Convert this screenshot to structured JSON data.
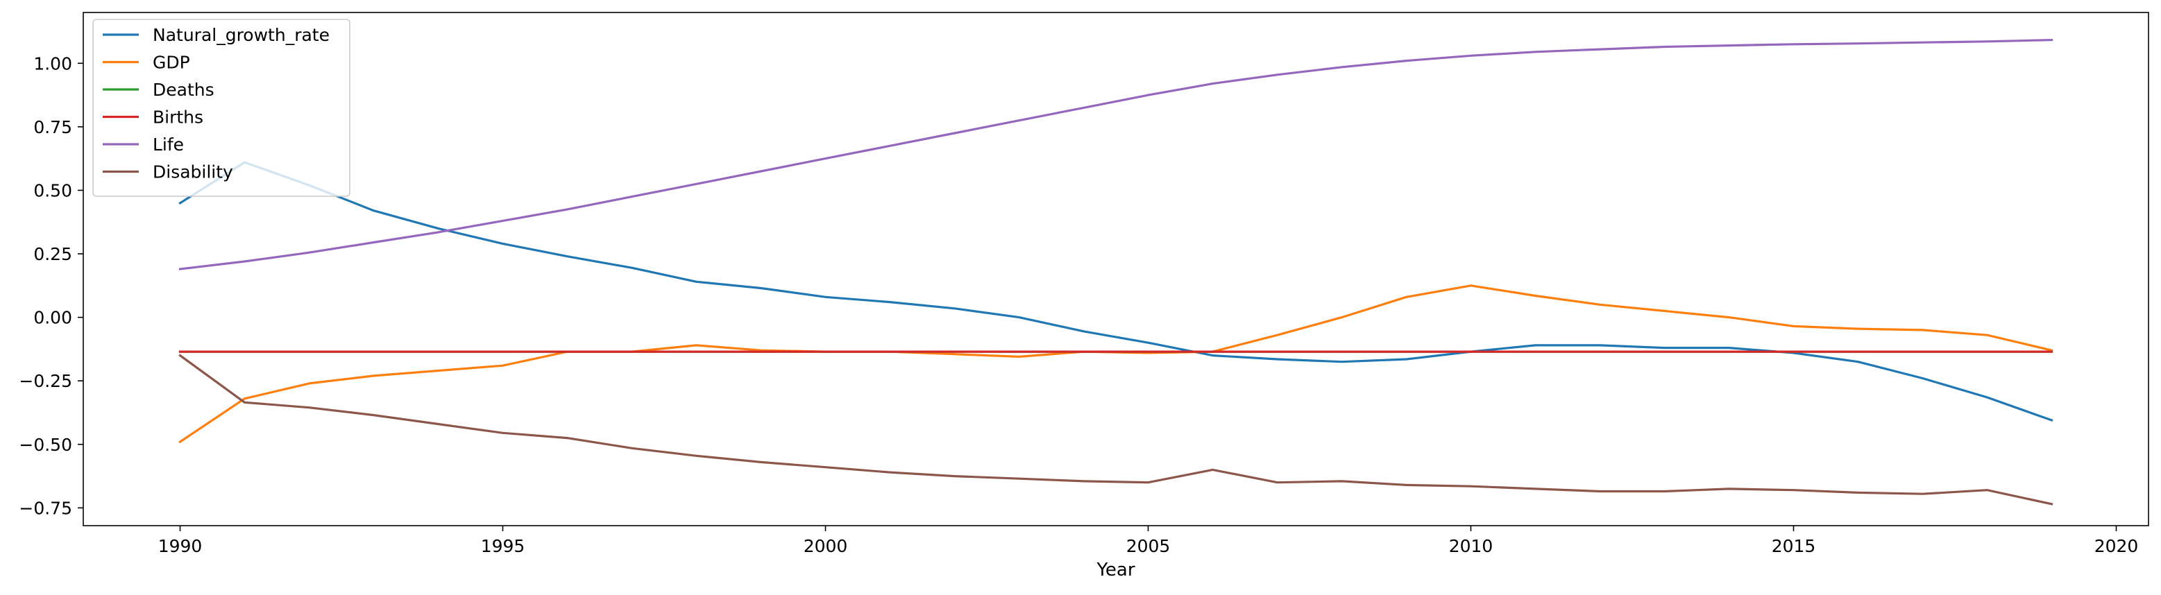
{
  "chart_data": {
    "type": "line",
    "title": "",
    "xlabel": "Year",
    "ylabel": "",
    "xlim": [
      1988.5,
      2020.5
    ],
    "ylim": [
      -0.82,
      1.2
    ],
    "xticks": [
      1990,
      1995,
      2000,
      2005,
      2010,
      2015,
      2020
    ],
    "yticks": [
      -0.75,
      -0.5,
      -0.25,
      0.0,
      0.25,
      0.5,
      0.75,
      1.0
    ],
    "ytick_labels": [
      "−0.75",
      "−0.50",
      "−0.25",
      "0.00",
      "0.25",
      "0.50",
      "0.75",
      "1.00"
    ],
    "grid": false,
    "legend_position": "top-left",
    "x": [
      1990,
      1991,
      1992,
      1993,
      1994,
      1995,
      1996,
      1997,
      1998,
      1999,
      2000,
      2001,
      2002,
      2003,
      2004,
      2005,
      2006,
      2007,
      2008,
      2009,
      2010,
      2011,
      2012,
      2013,
      2014,
      2015,
      2016,
      2017,
      2018,
      2019
    ],
    "series": [
      {
        "name": "Natural_growth_rate",
        "color": "#1f77b4",
        "values": [
          0.45,
          0.61,
          0.52,
          0.42,
          0.35,
          0.29,
          0.24,
          0.195,
          0.14,
          0.115,
          0.08,
          0.06,
          0.035,
          0.0,
          -0.055,
          -0.1,
          -0.15,
          -0.165,
          -0.175,
          -0.165,
          -0.135,
          -0.11,
          -0.11,
          -0.12,
          -0.12,
          -0.14,
          -0.175,
          -0.24,
          -0.315,
          -0.405
        ]
      },
      {
        "name": "GDP",
        "color": "#ff7f0e",
        "values": [
          -0.49,
          -0.32,
          -0.26,
          -0.23,
          -0.21,
          -0.19,
          -0.135,
          -0.135,
          -0.11,
          -0.13,
          -0.135,
          -0.135,
          -0.145,
          -0.155,
          -0.135,
          -0.14,
          -0.135,
          -0.07,
          0.0,
          0.08,
          0.125,
          0.085,
          0.05,
          0.025,
          0.0,
          -0.035,
          -0.045,
          -0.05,
          -0.07,
          -0.13
        ]
      },
      {
        "name": "Deaths",
        "color": "#2ca02c",
        "values": [
          -0.135,
          -0.135,
          -0.135,
          -0.135,
          -0.135,
          -0.135,
          -0.135,
          -0.135,
          -0.135,
          -0.135,
          -0.135,
          -0.135,
          -0.135,
          -0.135,
          -0.135,
          -0.135,
          -0.135,
          -0.135,
          -0.135,
          -0.135,
          -0.135,
          -0.135,
          -0.135,
          -0.135,
          -0.135,
          -0.135,
          -0.135,
          -0.135,
          -0.135,
          -0.135
        ]
      },
      {
        "name": "Births",
        "color": "#d62728",
        "values": [
          -0.135,
          -0.135,
          -0.135,
          -0.135,
          -0.135,
          -0.135,
          -0.135,
          -0.135,
          -0.135,
          -0.135,
          -0.135,
          -0.135,
          -0.135,
          -0.135,
          -0.135,
          -0.135,
          -0.135,
          -0.135,
          -0.135,
          -0.135,
          -0.135,
          -0.135,
          -0.135,
          -0.135,
          -0.135,
          -0.135,
          -0.135,
          -0.135,
          -0.135,
          -0.135
        ]
      },
      {
        "name": "Life",
        "color": "#9467bd",
        "values": [
          0.19,
          0.22,
          0.255,
          0.295,
          0.335,
          0.38,
          0.425,
          0.475,
          0.525,
          0.575,
          0.625,
          0.675,
          0.725,
          0.775,
          0.825,
          0.875,
          0.92,
          0.955,
          0.985,
          1.01,
          1.03,
          1.045,
          1.055,
          1.065,
          1.07,
          1.075,
          1.078,
          1.082,
          1.086,
          1.092
        ]
      },
      {
        "name": "Disability",
        "color": "#8c564b",
        "values": [
          -0.15,
          -0.335,
          -0.355,
          -0.385,
          -0.42,
          -0.455,
          -0.475,
          -0.515,
          -0.545,
          -0.57,
          -0.59,
          -0.61,
          -0.625,
          -0.635,
          -0.645,
          -0.65,
          -0.6,
          -0.65,
          -0.645,
          -0.66,
          -0.665,
          -0.675,
          -0.685,
          -0.685,
          -0.675,
          -0.68,
          -0.69,
          -0.695,
          -0.68,
          -0.735
        ]
      }
    ]
  }
}
